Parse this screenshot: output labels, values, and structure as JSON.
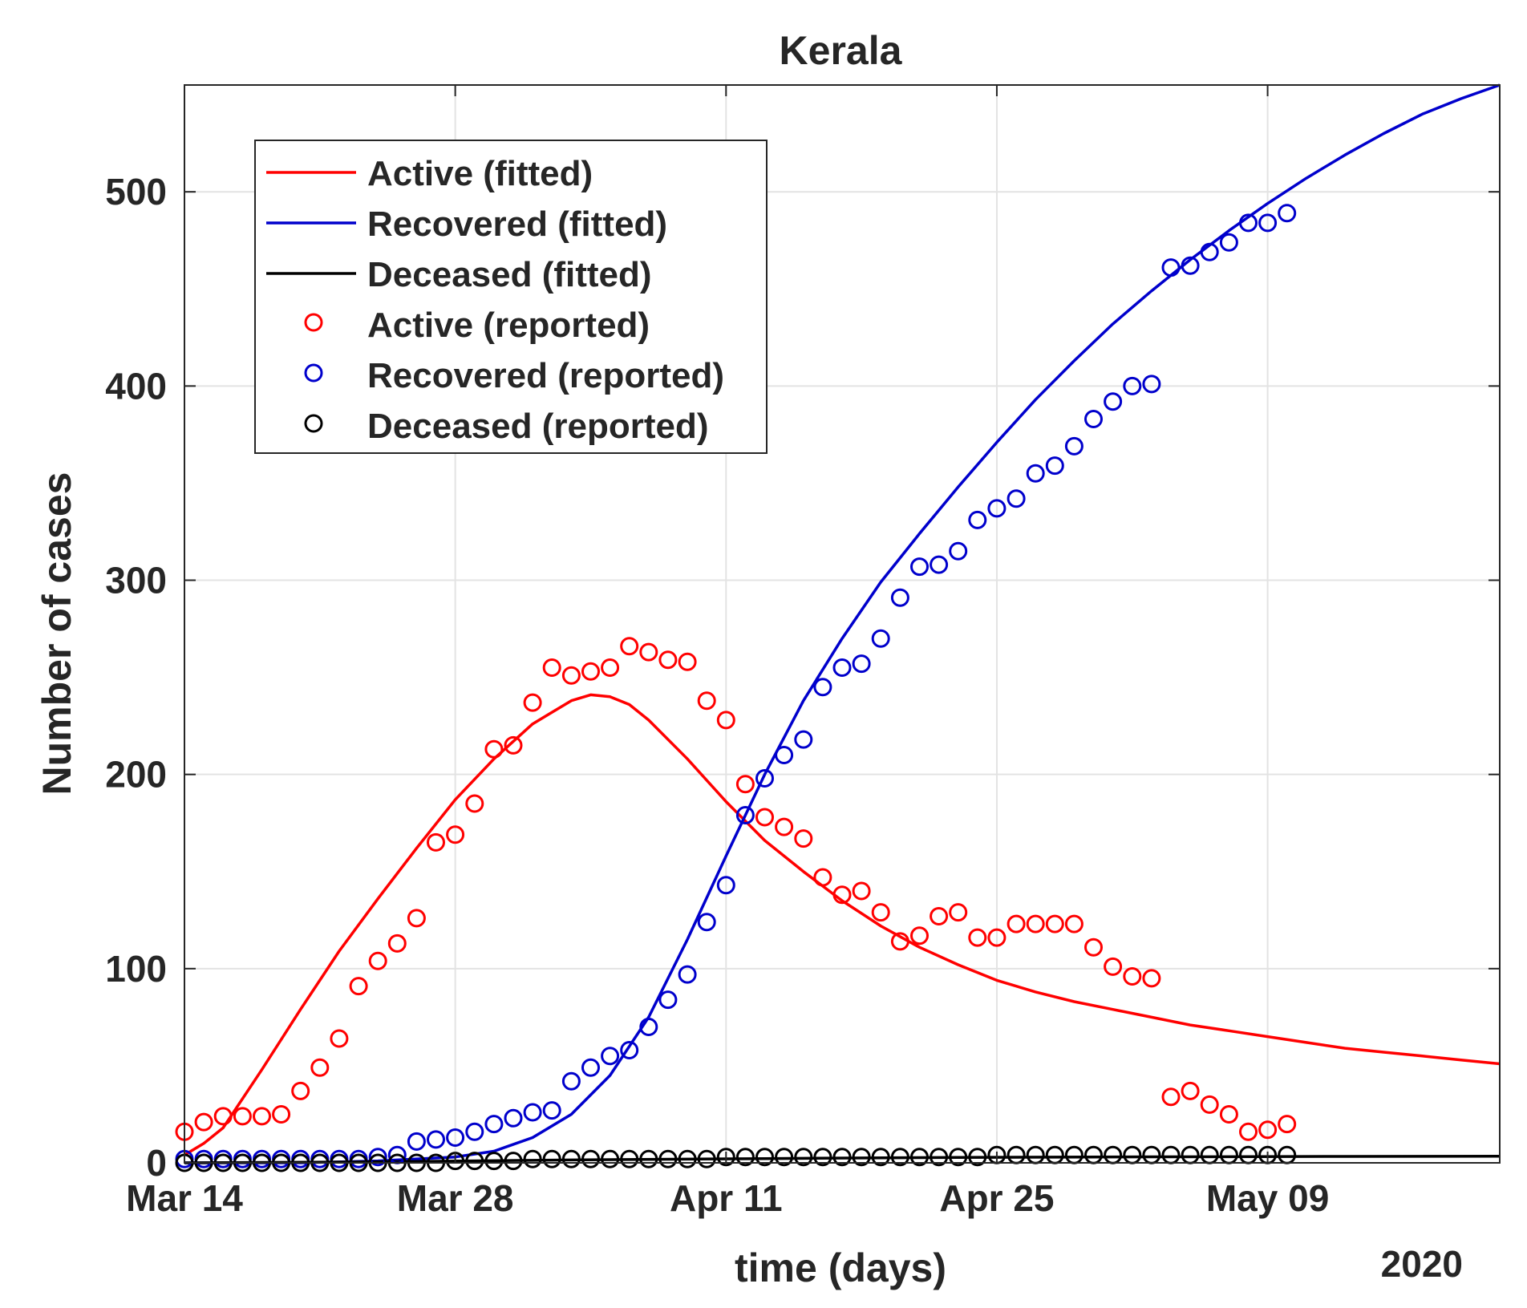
{
  "chart_data": {
    "type": "line",
    "title": "Kerala",
    "xlabel": "time (days)",
    "ylabel": "Number of cases",
    "year_label": "2020",
    "x_unit": "days since Mar 14",
    "xlim": [
      0,
      68
    ],
    "ylim": [
      0,
      555
    ],
    "x_ticks": [
      {
        "value": 0,
        "label": "Mar 14"
      },
      {
        "value": 14,
        "label": "Mar 28"
      },
      {
        "value": 28,
        "label": "Apr 11"
      },
      {
        "value": 42,
        "label": "Apr 25"
      },
      {
        "value": 56,
        "label": "May 09"
      }
    ],
    "y_ticks": [
      0,
      100,
      200,
      300,
      400,
      500
    ],
    "grid": true,
    "legend_position": "top-left",
    "series": [
      {
        "name": "Active (fitted)",
        "kind": "line",
        "color": "#ff0000",
        "x": [
          0,
          1,
          2,
          4,
          6,
          8,
          10,
          12,
          14,
          16,
          18,
          20,
          21,
          22,
          23,
          24,
          26,
          28,
          30,
          32,
          34,
          36,
          38,
          40,
          42,
          44,
          46,
          48,
          50,
          52,
          54,
          56,
          58,
          60,
          62,
          64,
          66,
          68
        ],
        "values": [
          4,
          10,
          18,
          48,
          79,
          109,
          136,
          162,
          187,
          208,
          226,
          238,
          241,
          240,
          236,
          228,
          208,
          186,
          166,
          150,
          135,
          122,
          111,
          102,
          94,
          88,
          83,
          79,
          75,
          71,
          68,
          65,
          62,
          59,
          57,
          55,
          53,
          51
        ]
      },
      {
        "name": "Recovered (fitted)",
        "kind": "line",
        "color": "#0000cc",
        "x": [
          0,
          6,
          10,
          14,
          16,
          18,
          20,
          22,
          24,
          26,
          28,
          30,
          32,
          34,
          36,
          38,
          40,
          42,
          44,
          46,
          48,
          50,
          52,
          54,
          56,
          58,
          60,
          62,
          64,
          66,
          68
        ],
        "values": [
          0,
          0,
          1,
          3,
          6,
          13,
          25,
          45,
          75,
          115,
          158,
          200,
          238,
          270,
          299,
          324,
          348,
          371,
          393,
          413,
          432,
          449,
          465,
          480,
          494,
          507,
          519,
          530,
          540,
          548,
          555
        ]
      },
      {
        "name": "Deceased (fitted)",
        "kind": "line",
        "color": "#000000",
        "x": [
          0,
          10,
          20,
          30,
          40,
          50,
          60,
          68
        ],
        "values": [
          0,
          0.5,
          1.5,
          2.2,
          2.8,
          3.1,
          3.3,
          3.4
        ]
      },
      {
        "name": "Active (reported)",
        "kind": "scatter",
        "color": "#ff0000",
        "x": [
          0,
          1,
          2,
          3,
          4,
          5,
          6,
          7,
          8,
          9,
          10,
          11,
          12,
          13,
          14,
          15,
          16,
          17,
          18,
          19,
          20,
          21,
          22,
          23,
          24,
          25,
          26,
          27,
          28,
          29,
          30,
          31,
          32,
          33,
          34,
          35,
          36,
          37,
          38,
          39,
          40,
          41,
          42,
          43,
          44,
          45,
          46,
          47,
          48,
          49,
          50,
          51,
          52,
          53,
          54,
          55,
          56,
          57
        ],
        "values": [
          16,
          21,
          24,
          24,
          24,
          25,
          37,
          49,
          64,
          91,
          104,
          113,
          126,
          165,
          169,
          185,
          213,
          215,
          237,
          255,
          251,
          253,
          255,
          266,
          263,
          259,
          258,
          238,
          228,
          195,
          178,
          173,
          167,
          147,
          138,
          140,
          129,
          114,
          117,
          127,
          129,
          116,
          116,
          123,
          123,
          123,
          123,
          111,
          101,
          96,
          95,
          34,
          37,
          30,
          25,
          16,
          17,
          20
        ]
      },
      {
        "name": "Recovered (reported)",
        "kind": "scatter",
        "color": "#0000cc",
        "x": [
          0,
          1,
          2,
          3,
          4,
          5,
          6,
          7,
          8,
          9,
          10,
          11,
          12,
          13,
          14,
          15,
          16,
          17,
          18,
          19,
          20,
          21,
          22,
          23,
          24,
          25,
          26,
          27,
          28,
          29,
          30,
          31,
          32,
          33,
          34,
          35,
          36,
          37,
          38,
          39,
          40,
          41,
          42,
          43,
          44,
          45,
          46,
          47,
          48,
          49,
          50,
          51,
          52,
          53,
          54,
          55,
          56,
          57
        ],
        "values": [
          2,
          2,
          2,
          2,
          2,
          2,
          2,
          2,
          2,
          2,
          3,
          4,
          11,
          12,
          13,
          16,
          20,
          23,
          26,
          27,
          42,
          49,
          55,
          58,
          70,
          84,
          97,
          124,
          143,
          179,
          198,
          210,
          218,
          245,
          255,
          257,
          270,
          291,
          307,
          308,
          315,
          331,
          337,
          342,
          355,
          359,
          369,
          383,
          392,
          400,
          401,
          461,
          462,
          469,
          474,
          484,
          484,
          489
        ]
      },
      {
        "name": "Deceased (reported)",
        "kind": "scatter",
        "color": "#000000",
        "x": [
          0,
          1,
          2,
          3,
          4,
          5,
          6,
          7,
          8,
          9,
          10,
          11,
          12,
          13,
          14,
          15,
          16,
          17,
          18,
          19,
          20,
          21,
          22,
          23,
          24,
          25,
          26,
          27,
          28,
          29,
          30,
          31,
          32,
          33,
          34,
          35,
          36,
          37,
          38,
          39,
          40,
          41,
          42,
          43,
          44,
          45,
          46,
          47,
          48,
          49,
          50,
          51,
          52,
          53,
          54,
          55,
          56,
          57
        ],
        "values": [
          0,
          0,
          0,
          0,
          0,
          0,
          0,
          0,
          0,
          0,
          0,
          0,
          0,
          0,
          1,
          1,
          1,
          1,
          2,
          2,
          2,
          2,
          2,
          2,
          2,
          2,
          2,
          2,
          3,
          3,
          3,
          3,
          3,
          3,
          3,
          3,
          3,
          3,
          3,
          3,
          3,
          3,
          4,
          4,
          4,
          4,
          4,
          4,
          4,
          4,
          4,
          4,
          4,
          4,
          4,
          4,
          4,
          4
        ]
      }
    ]
  }
}
